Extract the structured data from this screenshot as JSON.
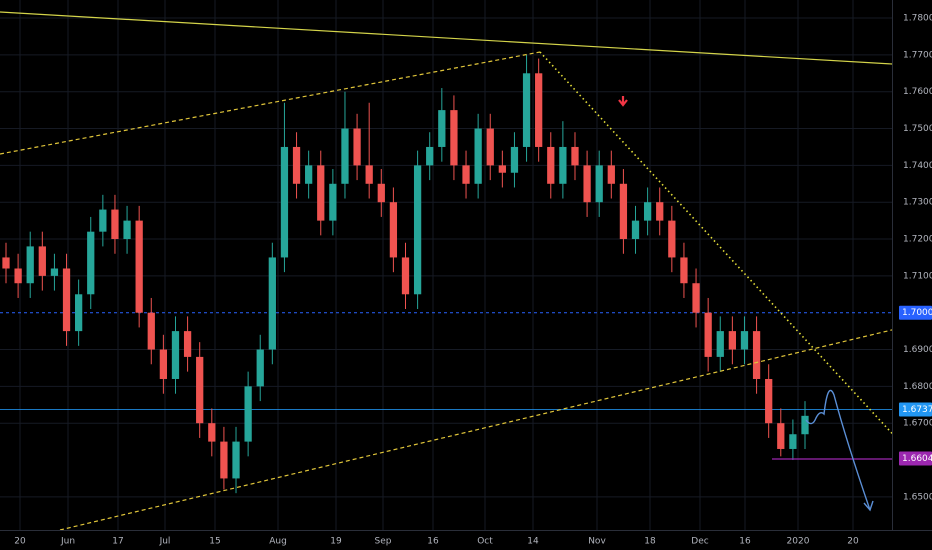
{
  "chart_data": {
    "type": "candlestick",
    "up_color": "#26a69a",
    "down_color": "#ef5350",
    "ylim": [
      1.641,
      1.7849
    ],
    "yticks": [
      {
        "value": 1.78,
        "label": "1.78000"
      },
      {
        "value": 1.77,
        "label": "1.77000"
      },
      {
        "value": 1.76,
        "label": "1.76000"
      },
      {
        "value": 1.75,
        "label": "1.75000"
      },
      {
        "value": 1.74,
        "label": "1.74000"
      },
      {
        "value": 1.73,
        "label": "1.73000"
      },
      {
        "value": 1.72,
        "label": "1.72000"
      },
      {
        "value": 1.71,
        "label": "1.71000"
      },
      {
        "value": 1.69,
        "label": "1.69000"
      },
      {
        "value": 1.68,
        "label": "1.68000"
      },
      {
        "value": 1.67,
        "label": "1.67000"
      },
      {
        "value": 1.65,
        "label": "1.65000"
      }
    ],
    "xticks": [
      "20",
      "Jun",
      "17",
      "Jul",
      "15",
      "Aug",
      "19",
      "Sep",
      "16",
      "Oct",
      "14",
      "Nov",
      "18",
      "Dec",
      "16",
      "2020",
      "20"
    ],
    "price_tags": [
      {
        "value": 1.7,
        "label": "1.70000",
        "color": "#2962ff"
      },
      {
        "value": 1.6737,
        "label": "1.67370",
        "color": "#2196f3"
      },
      {
        "value": 1.66042,
        "label": "1.66042",
        "color": "#9c27b0"
      }
    ],
    "open": [
      1.715,
      1.712,
      1.708,
      1.718,
      1.71,
      1.712,
      1.695,
      1.705,
      1.722,
      1.728,
      1.72,
      1.725,
      1.7,
      1.69,
      1.682,
      1.695,
      1.688,
      1.67,
      1.665,
      1.655,
      1.665,
      1.68,
      1.69,
      1.715,
      1.745,
      1.735,
      1.74,
      1.725,
      1.735,
      1.75,
      1.74,
      1.735,
      1.73,
      1.715,
      1.705,
      1.74,
      1.745,
      1.755,
      1.74,
      1.735,
      1.75,
      1.74,
      1.738,
      1.745,
      1.765,
      1.745,
      1.735,
      1.745,
      1.74,
      1.73,
      1.74,
      1.735,
      1.72,
      1.725,
      1.73,
      1.725,
      1.715,
      1.708,
      1.7,
      1.688,
      1.695,
      1.69,
      1.695,
      1.682,
      1.67,
      1.663,
      1.667
    ],
    "high": [
      1.719,
      1.716,
      1.722,
      1.722,
      1.716,
      1.716,
      1.709,
      1.726,
      1.732,
      1.732,
      1.729,
      1.729,
      1.704,
      1.694,
      1.699,
      1.699,
      1.692,
      1.674,
      1.669,
      1.669,
      1.684,
      1.694,
      1.719,
      1.757,
      1.749,
      1.744,
      1.744,
      1.739,
      1.76,
      1.754,
      1.757,
      1.739,
      1.734,
      1.719,
      1.744,
      1.749,
      1.761,
      1.759,
      1.744,
      1.754,
      1.754,
      1.744,
      1.749,
      1.77,
      1.769,
      1.749,
      1.752,
      1.749,
      1.744,
      1.744,
      1.744,
      1.739,
      1.729,
      1.734,
      1.734,
      1.729,
      1.719,
      1.712,
      1.704,
      1.699,
      1.699,
      1.699,
      1.699,
      1.686,
      1.674,
      1.671,
      1.676
    ],
    "low": [
      1.708,
      1.704,
      1.704,
      1.706,
      1.706,
      1.691,
      1.691,
      1.701,
      1.718,
      1.716,
      1.716,
      1.696,
      1.686,
      1.678,
      1.678,
      1.684,
      1.666,
      1.661,
      1.652,
      1.651,
      1.661,
      1.676,
      1.686,
      1.711,
      1.731,
      1.731,
      1.721,
      1.721,
      1.731,
      1.736,
      1.731,
      1.726,
      1.711,
      1.701,
      1.701,
      1.736,
      1.741,
      1.736,
      1.731,
      1.731,
      1.736,
      1.734,
      1.734,
      1.741,
      1.741,
      1.731,
      1.731,
      1.736,
      1.726,
      1.726,
      1.731,
      1.716,
      1.716,
      1.721,
      1.721,
      1.711,
      1.704,
      1.696,
      1.684,
      1.684,
      1.686,
      1.686,
      1.678,
      1.666,
      1.661,
      1.66,
      1.663
    ],
    "close": [
      1.712,
      1.708,
      1.718,
      1.71,
      1.712,
      1.695,
      1.705,
      1.722,
      1.728,
      1.72,
      1.725,
      1.7,
      1.69,
      1.682,
      1.695,
      1.688,
      1.67,
      1.665,
      1.655,
      1.665,
      1.68,
      1.69,
      1.715,
      1.745,
      1.735,
      1.74,
      1.725,
      1.735,
      1.75,
      1.74,
      1.735,
      1.73,
      1.715,
      1.705,
      1.74,
      1.745,
      1.755,
      1.74,
      1.735,
      1.75,
      1.74,
      1.738,
      1.745,
      1.765,
      1.745,
      1.735,
      1.745,
      1.74,
      1.73,
      1.74,
      1.735,
      1.72,
      1.725,
      1.73,
      1.725,
      1.715,
      1.708,
      1.7,
      1.688,
      1.695,
      1.69,
      1.695,
      1.682,
      1.67,
      1.663,
      1.667,
      1.672
    ]
  }
}
